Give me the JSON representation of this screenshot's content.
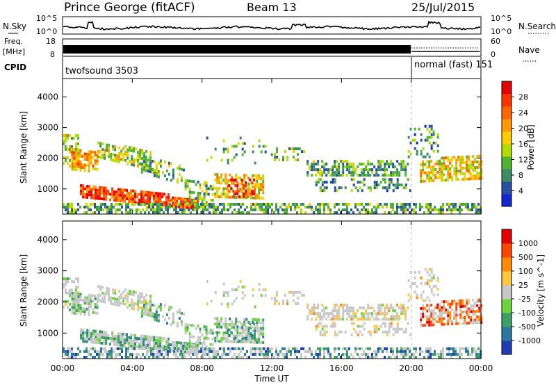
{
  "header": {
    "title": "Prince George (fitACF)",
    "beam": "Beam 13",
    "date": "25/Jul/2015"
  },
  "top_panels": {
    "nsky_label": "N.Sky",
    "nsky_ticks": [
      "10^5",
      "10^0"
    ],
    "nsearch_label": "N.Search",
    "nsearch_ticks": [
      "10^5",
      "10^0"
    ],
    "freq_label_1": "Freq.",
    "freq_label_2": "[MHz]",
    "freq_ticks": [
      "18",
      "8"
    ],
    "nave_label": "Nave",
    "nave_ticks": [
      "60",
      "0"
    ],
    "cpid_label": "CPID",
    "cpid_segments": [
      {
        "name": "twofsound 3503"
      },
      {
        "name": "normal (fast) 151"
      }
    ]
  },
  "chart_data": [
    {
      "type": "heatmap",
      "title": "",
      "xlabel": "",
      "ylabel": "Slant Range [km]",
      "x_ticks": [
        "00:00",
        "04:00",
        "08:00",
        "12:00",
        "16:00",
        "20:00",
        "00:00"
      ],
      "y_ticks": [
        1000,
        2000,
        3000,
        4000
      ],
      "ylim": [
        180,
        4600
      ],
      "xlim_hours": [
        0,
        24
      ],
      "colorbar_label": "Power [dB]",
      "colorbar_ticks": [
        "28",
        "24",
        "20",
        "16",
        "12",
        "8",
        "4"
      ],
      "colors": [
        "#1428d2",
        "#2850a0",
        "#3c8c64",
        "#50b432",
        "#b4dc00",
        "#ffcc00",
        "#ff9900",
        "#ff6600",
        "#ff3300",
        "#e60000"
      ]
    },
    {
      "type": "heatmap",
      "title": "",
      "xlabel": "Time UT",
      "ylabel": "Slant Range [km]",
      "x_ticks": [
        "00:00",
        "04:00",
        "08:00",
        "12:00",
        "16:00",
        "20:00",
        "00:00"
      ],
      "y_ticks": [
        1000,
        2000,
        3000,
        4000
      ],
      "ylim": [
        180,
        4600
      ],
      "xlim_hours": [
        0,
        24
      ],
      "colorbar_label": "Velocity [m s^-1]",
      "colorbar_ticks": [
        "1000",
        "500",
        "100",
        "25",
        "-25",
        "-100",
        "-500",
        "-1000"
      ],
      "colors": [
        "#1e3cb4",
        "#2d78a0",
        "#3ca064",
        "#6ed23c",
        "#c8c8c8",
        "#ffc83c",
        "#ff8c00",
        "#ff4600",
        "#e60000"
      ]
    }
  ]
}
